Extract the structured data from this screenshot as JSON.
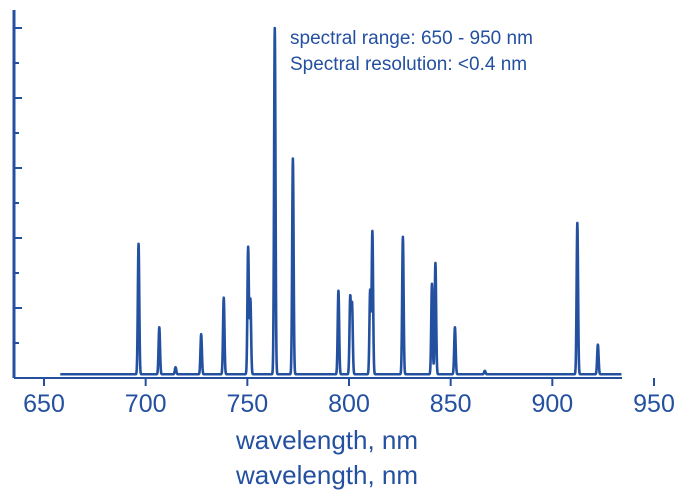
{
  "chart_data": {
    "type": "line",
    "xlabel": "wavelength, nm",
    "xlabel_repeat": "wavelength, nm",
    "xlim": [
      640,
      950
    ],
    "ylim": [
      0,
      1.0
    ],
    "x_ticks": [
      "650",
      "700",
      "750",
      "800",
      "850",
      "900",
      "950"
    ],
    "annotations": [
      "spectral range: 650 - 950 nm",
      "Spectral resolution: <0.4 nm"
    ],
    "baseline": 0.005,
    "peaks": [
      {
        "x": 696.5,
        "y": 0.38
      },
      {
        "x": 706.7,
        "y": 0.14
      },
      {
        "x": 714.7,
        "y": 0.025
      },
      {
        "x": 727.3,
        "y": 0.12
      },
      {
        "x": 738.4,
        "y": 0.225
      },
      {
        "x": 750.4,
        "y": 0.37
      },
      {
        "x": 751.5,
        "y": 0.22
      },
      {
        "x": 763.5,
        "y": 1.0
      },
      {
        "x": 772.4,
        "y": 0.625
      },
      {
        "x": 794.8,
        "y": 0.245
      },
      {
        "x": 800.6,
        "y": 0.225
      },
      {
        "x": 801.5,
        "y": 0.205
      },
      {
        "x": 810.4,
        "y": 0.245
      },
      {
        "x": 811.5,
        "y": 0.415
      },
      {
        "x": 826.5,
        "y": 0.4
      },
      {
        "x": 840.8,
        "y": 0.265
      },
      {
        "x": 842.5,
        "y": 0.325
      },
      {
        "x": 852.1,
        "y": 0.14
      },
      {
        "x": 866.8,
        "y": 0.015
      },
      {
        "x": 912.3,
        "y": 0.44
      },
      {
        "x": 922.4,
        "y": 0.09
      }
    ],
    "colors": {
      "line": "#2450a0",
      "axis": "#2450a0",
      "text": "#2450a0"
    }
  }
}
